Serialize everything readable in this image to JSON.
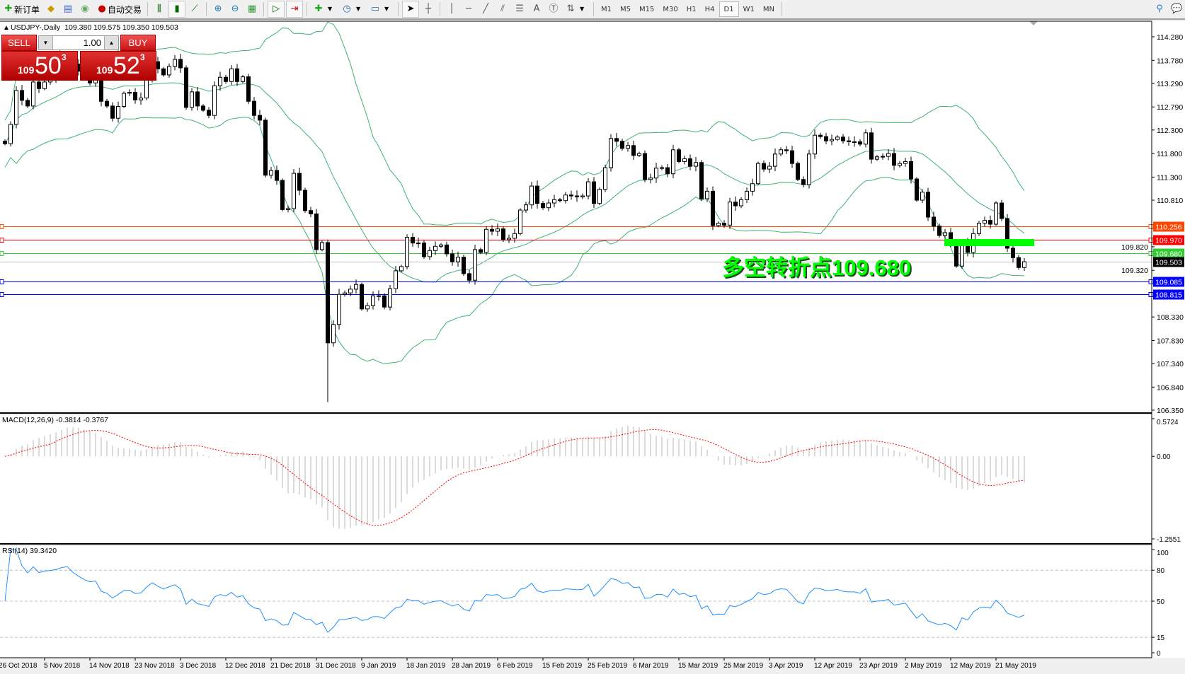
{
  "toolbar": {
    "new_order": "新订单",
    "auto_trading": "自动交易",
    "timeframes": [
      "M1",
      "M5",
      "M15",
      "M30",
      "H1",
      "H4",
      "D1",
      "W1",
      "MN"
    ],
    "active_timeframe": "D1"
  },
  "chart": {
    "symbol": "USDJPY-,Daily",
    "ohlc": "109.380 109.575 109.350 109.503"
  },
  "trade_panel": {
    "sell": "SELL",
    "buy": "BUY",
    "lot": "1.00",
    "sell_price": {
      "prefix": "109",
      "main": "50",
      "sup": "3"
    },
    "buy_price": {
      "prefix": "109",
      "main": "52",
      "sup": "3"
    }
  },
  "price_axis": {
    "labels": [
      "114.280",
      "113.780",
      "113.290",
      "112.790",
      "112.300",
      "111.800",
      "111.300",
      "110.810",
      "109.820",
      "109.320",
      "108.330",
      "107.830",
      "107.340",
      "106.840",
      "106.350"
    ]
  },
  "hlines": [
    {
      "price": "110.256",
      "color": "#ff4500"
    },
    {
      "price": "109.970",
      "color": "#ff0000"
    },
    {
      "price": "109.680",
      "color": "#32cd32"
    },
    {
      "price": "109.503",
      "color": "#000000",
      "line": "#c0c0c0"
    },
    {
      "price": "109.085",
      "color": "#0000ff"
    },
    {
      "price": "108.815",
      "color": "#0000ff"
    }
  ],
  "annotation": {
    "text": "多空转折点109.680",
    "color": "#00ff00"
  },
  "macd": {
    "title": "MACD(12,26,9) -0.3814 -0.3767",
    "axis": [
      "0.5724",
      "0.00",
      "-1.2551"
    ],
    "max": 0.5724,
    "min": -1.2551,
    "hist_color": "#c0c0c0",
    "signal_color": "#ff0000"
  },
  "rsi": {
    "title": "RSI(14) 39.3420",
    "axis": [
      "100",
      "80",
      "50",
      "15",
      "0"
    ],
    "levels": [
      80,
      50,
      15
    ],
    "color": "#1e90ff"
  },
  "dates": [
    "26 Oct 2018",
    "5 Nov 2018",
    "14 Nov 2018",
    "23 Nov 2018",
    "3 Dec 2018",
    "12 Dec 2018",
    "21 Dec 2018",
    "31 Dec 2018",
    "9 Jan 2019",
    "18 Jan 2019",
    "28 Jan 2019",
    "6 Feb 2019",
    "15 Feb 2019",
    "25 Feb 2019",
    "6 Mar 2019",
    "15 Mar 2019",
    "25 Mar 2019",
    "3 Apr 2019",
    "12 Apr 2019",
    "23 Apr 2019",
    "2 May 2019",
    "12 May 2019",
    "21 May 2019"
  ],
  "chart_data": {
    "type": "candlestick",
    "bollinger_color": "#3cb371",
    "ylim": [
      106.35,
      114.28
    ],
    "close": [
      112.01,
      112.42,
      113.14,
      112.93,
      112.81,
      113.32,
      113.18,
      113.32,
      113.38,
      113.5,
      113.75,
      113.9,
      113.7,
      113.55,
      113.4,
      113.3,
      113.38,
      112.91,
      112.81,
      112.55,
      112.8,
      113.08,
      113.1,
      112.94,
      112.98,
      113.38,
      113.75,
      113.6,
      113.47,
      113.65,
      113.8,
      113.62,
      112.78,
      113.11,
      112.81,
      112.72,
      112.61,
      113.24,
      113.42,
      113.33,
      113.6,
      113.33,
      113.43,
      112.91,
      112.61,
      112.51,
      111.34,
      111.44,
      111.23,
      110.61,
      110.63,
      111.38,
      111.02,
      110.59,
      110.52,
      109.76,
      109.91,
      107.78,
      108.17,
      108.81,
      108.84,
      108.92,
      109.02,
      108.5,
      108.57,
      108.78,
      108.78,
      108.54,
      108.93,
      109.31,
      109.4,
      110.02,
      109.9,
      109.9,
      109.61,
      109.74,
      109.83,
      109.86,
      109.67,
      109.5,
      109.6,
      109.25,
      109.11,
      109.76,
      109.7,
      110.19,
      110.15,
      110.2,
      109.97,
      110.0,
      110.1,
      110.6,
      110.71,
      111.11,
      110.74,
      110.65,
      110.75,
      110.82,
      110.8,
      110.92,
      110.9,
      110.88,
      110.9,
      111.2,
      110.74,
      111.04,
      111.5,
      112.12,
      112.06,
      111.91,
      111.97,
      111.76,
      111.8,
      111.25,
      111.28,
      111.49,
      111.5,
      111.37,
      111.88,
      111.63,
      111.69,
      111.53,
      111.61,
      110.84,
      111.0,
      110.27,
      110.32,
      110.28,
      110.77,
      110.69,
      110.82,
      111.0,
      111.16,
      111.59,
      111.47,
      111.53,
      111.79,
      111.88,
      111.86,
      111.59,
      111.25,
      111.14,
      111.79,
      112.19,
      112.16,
      112.07,
      112.1,
      112.15,
      112.07,
      112.05,
      112.05,
      112.0,
      112.24,
      111.68,
      111.73,
      111.74,
      111.8,
      111.55,
      111.59,
      111.63,
      111.26,
      110.81,
      110.98,
      110.45,
      110.26,
      110.06,
      110.12,
      109.9,
      109.41,
      109.92,
      109.7,
      110.1,
      110.32,
      110.38,
      110.3,
      110.75,
      110.42,
      109.79,
      109.59,
      109.38,
      109.503
    ]
  }
}
